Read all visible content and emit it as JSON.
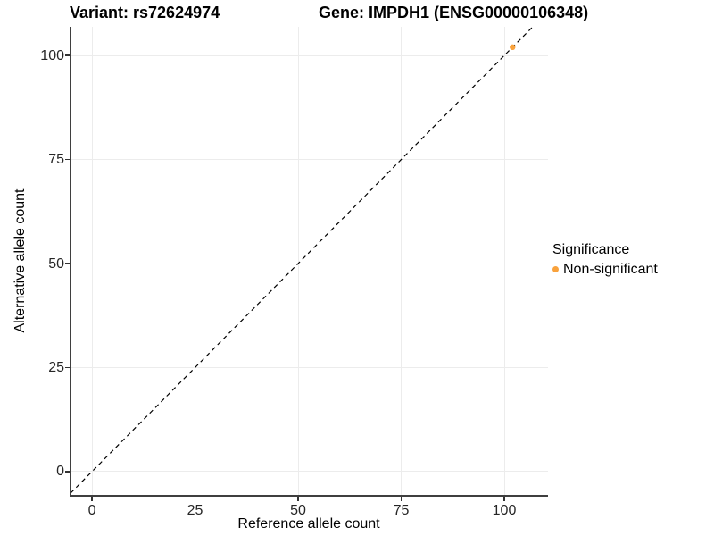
{
  "titles": {
    "left": "Variant: rs72624974",
    "right": "Gene: IMPDH1 (ENSG00000106348)"
  },
  "axes": {
    "x": {
      "label": "Reference allele count"
    },
    "y": {
      "label": "Alternative allele count"
    }
  },
  "legend": {
    "title": "Significance",
    "items": [
      {
        "label": "Non-significant",
        "color": "#F9A23C"
      }
    ]
  },
  "chart_data": {
    "type": "scatter",
    "title": "Variant: rs72624974   Gene: IMPDH1 (ENSG00000106348)",
    "xlabel": "Reference allele count",
    "ylabel": "Alternative allele count",
    "x_ticks": [
      0,
      25,
      50,
      75,
      100
    ],
    "y_ticks": [
      0,
      25,
      50,
      75,
      100
    ],
    "xlim": [
      -5.2,
      110.6
    ],
    "ylim": [
      -5.6,
      106.9
    ],
    "grid": true,
    "grid_color": "#ececec",
    "legend_position": "right",
    "series": [
      {
        "name": "Non-significant",
        "color": "#F9A23C",
        "points": [
          {
            "x": 102,
            "y": 102
          }
        ]
      }
    ],
    "reference_line": {
      "type": "abline",
      "slope": 1,
      "intercept": 0,
      "style": "dashed",
      "color": "#000000"
    }
  }
}
